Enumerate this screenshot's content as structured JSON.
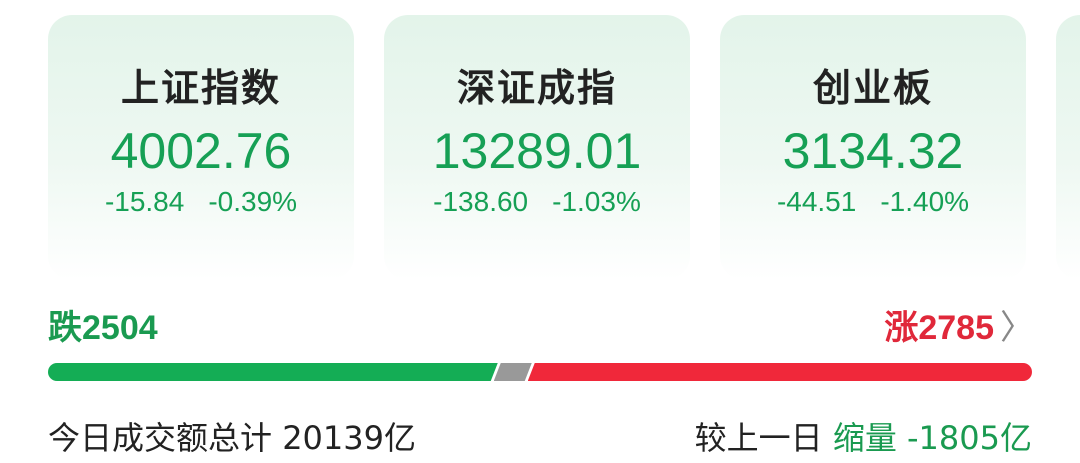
{
  "indices": [
    {
      "name": "上证指数",
      "price": "4002.76",
      "change": "-15.84",
      "pct": "-0.39%"
    },
    {
      "name": "深证成指",
      "price": "13289.01",
      "change": "-138.60",
      "pct": "-1.03%"
    },
    {
      "name": "创业板",
      "price": "3134.32",
      "change": "-44.51",
      "pct": "-1.40%"
    }
  ],
  "breadth": {
    "fall_label": "跌2504",
    "rise_label": "涨2785",
    "fall": 2504,
    "rise": 2785,
    "colors": {
      "fall": "#14ad55",
      "flat": "#999999",
      "rise": "#f0283a"
    }
  },
  "volume": {
    "label": "今日成交额总计",
    "value": "20139亿",
    "compare_label": "较上一日",
    "trend": "缩量",
    "delta": "-1805亿"
  },
  "icons": {
    "more": "chevron-right-icon"
  }
}
